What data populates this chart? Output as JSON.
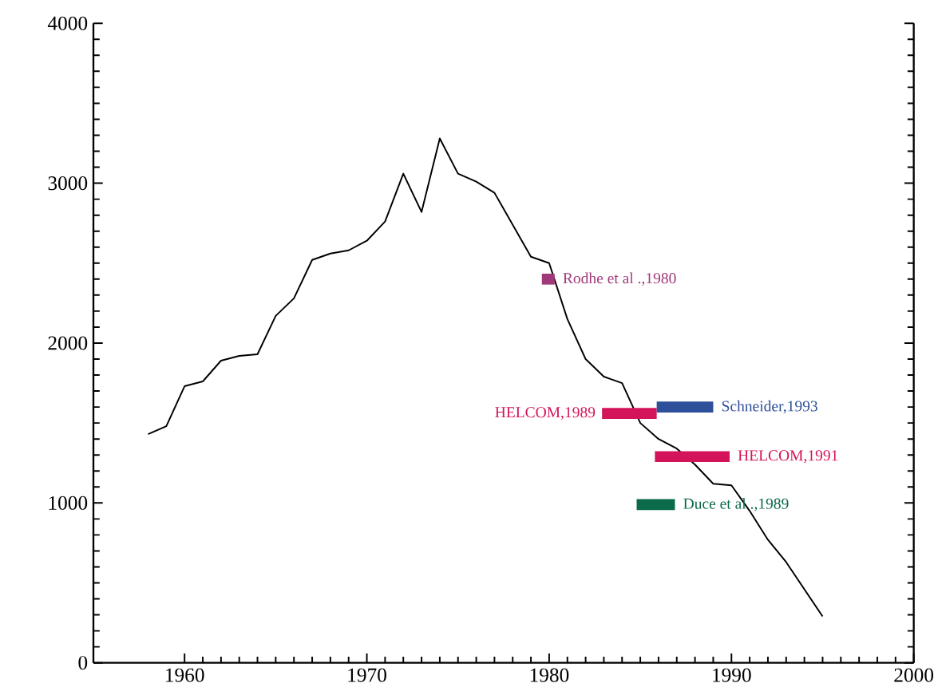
{
  "chart_data": {
    "type": "line",
    "xlim": [
      1955,
      2000
    ],
    "ylim": [
      0,
      4000
    ],
    "xticks": [
      1960,
      1970,
      1980,
      1990,
      2000
    ],
    "yticks": [
      0,
      1000,
      2000,
      3000,
      4000
    ],
    "grid": false,
    "marker": "none",
    "line_style": "solid",
    "series": [
      {
        "color": "#000000",
        "x": [
          1958,
          1959,
          1960,
          1961,
          1962,
          1963,
          1964,
          1965,
          1966,
          1967,
          1968,
          1969,
          1970,
          1971,
          1972,
          1973,
          1974,
          1975,
          1976,
          1977,
          1978,
          1979,
          1980,
          1981,
          1982,
          1983,
          1984,
          1985,
          1986,
          1987,
          1988,
          1989,
          1990,
          1991,
          1992,
          1993,
          1994,
          1995
        ],
        "values": [
          1430,
          1480,
          1730,
          1760,
          1890,
          1920,
          1930,
          2170,
          2280,
          2520,
          2560,
          2580,
          2640,
          2760,
          3060,
          2820,
          3280,
          3060,
          3010,
          2940,
          2740,
          2540,
          2500,
          2150,
          1900,
          1790,
          1750,
          1500,
          1400,
          1340,
          1240,
          1120,
          1110,
          950,
          770,
          630,
          460,
          290
        ]
      },
      {
        "name": "Rodhe et al .,1980",
        "color": "#a0397a",
        "x": [
          1979.6,
          1980.3
        ],
        "values": [
          2400,
          2400
        ]
      },
      {
        "name": "HELCOM,1989",
        "color": "#d4145a",
        "x": [
          1982.9,
          1985.9
        ],
        "values": [
          1560,
          1560
        ]
      },
      {
        "name": "Schneider,1993",
        "color": "#2e4f9a",
        "x": [
          1985.9,
          1989
        ],
        "values": [
          1600,
          1600
        ]
      },
      {
        "name": "HELCOM,1991",
        "color": "#d4145a",
        "x": [
          1985.8,
          1989.9
        ],
        "values": [
          1290,
          1290
        ]
      },
      {
        "name": "Duce et al .,1989",
        "color": "#0a6a4a",
        "x": [
          1984.8,
          1986.9
        ],
        "values": [
          990,
          990
        ]
      }
    ]
  }
}
